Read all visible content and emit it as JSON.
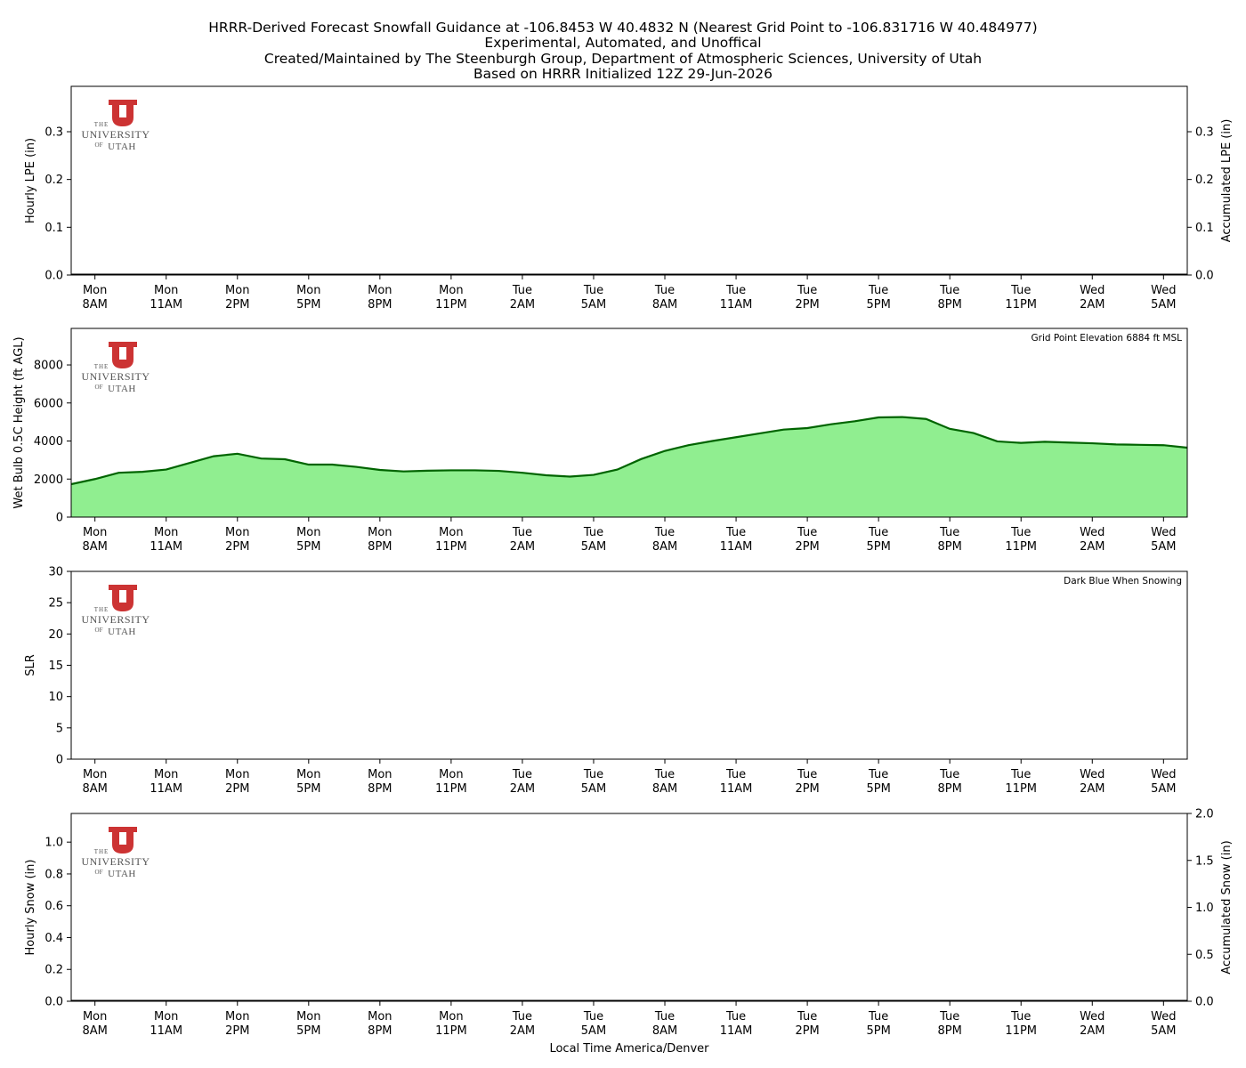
{
  "title": [
    "HRRR-Derived Forecast Snowfall Guidance at -106.8453 W 40.4832 N (Nearest Grid Point to -106.831716 W 40.484977)",
    "Experimental, Automated, and Unoffical",
    "Created/Maintained by The Steenburgh Group, Department of Atmospheric Sciences, University of Utah",
    "Based on HRRR Initialized 12Z 29-Jun-2026"
  ],
  "logo": [
    "THE",
    "UNIVERSITY",
    "OF",
    "UTAH"
  ],
  "chart_data": [
    {
      "type": "bar",
      "ylabel": "Hourly LPE (in)",
      "y2label": "Accumulated LPE (in)",
      "x": [
        null,
        "Mon\n8AM",
        null,
        null,
        "Mon\n11AM",
        null,
        null,
        "Mon\n2PM",
        null,
        null,
        "Mon\n5PM",
        null,
        null,
        "Mon\n8PM",
        null,
        null,
        "Mon\n11PM",
        null,
        null,
        "Tue\n2AM",
        null,
        null,
        "Tue\n5AM",
        null,
        null,
        "Tue\n8AM",
        null,
        null,
        "Tue\n11AM",
        null,
        null,
        "Tue\n2PM",
        null,
        null,
        "Tue\n5PM",
        null,
        null,
        "Tue\n8PM",
        null,
        null,
        "Tue\n11PM",
        null,
        null,
        "Wed\n2AM",
        null,
        null,
        "Wed\n5AM",
        null
      ],
      "ylim": [
        0,
        0.395
      ],
      "yticks": [
        {
          "value": 0,
          "label": "0.0"
        },
        0.1,
        0.2,
        0.3
      ],
      "y2lim": [
        0,
        0.395
      ],
      "y2ticks": [
        {
          "value": 0,
          "label": "0.0"
        },
        0.1,
        0.2,
        0.3
      ],
      "series": [
        {
          "color": "#00008b",
          "values": [
            0,
            0,
            0,
            0,
            0,
            0,
            0,
            0,
            0,
            0,
            0,
            0,
            0,
            0,
            0,
            0,
            0,
            0,
            0,
            0,
            0,
            0,
            0,
            0,
            0,
            0,
            0,
            0,
            0,
            0,
            0,
            0,
            0,
            0,
            0,
            0,
            0,
            0,
            0,
            0,
            0,
            0,
            0,
            0,
            0,
            0,
            0,
            0
          ]
        },
        {
          "color": "#000000",
          "axis": "y2",
          "values": [
            0,
            0,
            0,
            0,
            0,
            0,
            0,
            0,
            0,
            0,
            0,
            0,
            0,
            0,
            0,
            0,
            0,
            0,
            0,
            0,
            0,
            0,
            0,
            0,
            0,
            0,
            0,
            0,
            0,
            0,
            0,
            0,
            0,
            0,
            0,
            0,
            0,
            0,
            0,
            0,
            0,
            0,
            0,
            0,
            0,
            0,
            0,
            0
          ]
        }
      ]
    },
    {
      "type": "area",
      "ylabel": "Wet Bulb 0.5C Height (ft AGL)",
      "annotation": "Grid Point Elevation 6884 ft MSL",
      "x": [
        null,
        "Mon\n8AM",
        null,
        null,
        "Mon\n11AM",
        null,
        null,
        "Mon\n2PM",
        null,
        null,
        "Mon\n5PM",
        null,
        null,
        "Mon\n8PM",
        null,
        null,
        "Mon\n11PM",
        null,
        null,
        "Tue\n2AM",
        null,
        null,
        "Tue\n5AM",
        null,
        null,
        "Tue\n8AM",
        null,
        null,
        "Tue\n11AM",
        null,
        null,
        "Tue\n2PM",
        null,
        null,
        "Tue\n5PM",
        null,
        null,
        "Tue\n8PM",
        null,
        null,
        "Tue\n11PM",
        null,
        null,
        "Wed\n2AM",
        null,
        null,
        "Wed\n5AM",
        null
      ],
      "ylim": [
        0,
        9920
      ],
      "yticks": [
        0,
        2000,
        4000,
        6000,
        8000
      ],
      "series": [
        {
          "color": "#006400",
          "fill": "#90ee90",
          "values": [
            1730,
            2000,
            2330,
            2380,
            2500,
            2850,
            3200,
            3330,
            3080,
            3040,
            2760,
            2760,
            2640,
            2480,
            2400,
            2440,
            2460,
            2460,
            2430,
            2330,
            2200,
            2130,
            2220,
            2500,
            3050,
            3480,
            3780,
            4000,
            4200,
            4400,
            4600,
            4680,
            4880,
            5040,
            5240,
            5260,
            5160,
            4640,
            4420,
            3980,
            3900,
            3960,
            3920,
            3880,
            3820,
            3800,
            3780,
            3650
          ]
        }
      ]
    },
    {
      "type": "scatter",
      "ylabel": "SLR",
      "annotation": "Dark Blue When Snowing",
      "x": [
        null,
        "Mon\n8AM",
        null,
        null,
        "Mon\n11AM",
        null,
        null,
        "Mon\n2PM",
        null,
        null,
        "Mon\n5PM",
        null,
        null,
        "Mon\n8PM",
        null,
        null,
        "Mon\n11PM",
        null,
        null,
        "Tue\n2AM",
        null,
        null,
        "Tue\n5AM",
        null,
        null,
        "Tue\n8AM",
        null,
        null,
        "Tue\n11AM",
        null,
        null,
        "Tue\n2PM",
        null,
        null,
        "Tue\n5PM",
        null,
        null,
        "Tue\n8PM",
        null,
        null,
        "Tue\n11PM",
        null,
        null,
        "Wed\n2AM",
        null,
        null,
        "Wed\n5AM",
        null
      ],
      "ylim": [
        0,
        30
      ],
      "yticks": [
        0,
        5,
        10,
        15,
        20,
        25,
        30
      ]
    },
    {
      "type": "bar",
      "ylabel": "Hourly Snow (in)",
      "y2label": "Accumulated Snow (in)",
      "xlabel": "Local Time America/Denver",
      "x": [
        null,
        "Mon\n8AM",
        null,
        null,
        "Mon\n11AM",
        null,
        null,
        "Mon\n2PM",
        null,
        null,
        "Mon\n5PM",
        null,
        null,
        "Mon\n8PM",
        null,
        null,
        "Mon\n11PM",
        null,
        null,
        "Tue\n2AM",
        null,
        null,
        "Tue\n5AM",
        null,
        null,
        "Tue\n8AM",
        null,
        null,
        "Tue\n11AM",
        null,
        null,
        "Tue\n2PM",
        null,
        null,
        "Tue\n5PM",
        null,
        null,
        "Tue\n8PM",
        null,
        null,
        "Tue\n11PM",
        null,
        null,
        "Wed\n2AM",
        null,
        null,
        "Wed\n5AM",
        null
      ],
      "ylim": [
        0,
        1.18
      ],
      "yticks": [
        {
          "value": 0,
          "label": "0.0"
        },
        0.2,
        0.4,
        0.6,
        0.8,
        {
          "value": 1,
          "label": "1.0"
        }
      ],
      "y2lim": [
        0,
        2
      ],
      "y2ticks": [
        {
          "value": 0,
          "label": "0.0"
        },
        0.5,
        {
          "value": 1,
          "label": "1.0"
        },
        1.5,
        {
          "value": 2,
          "label": "2.0"
        }
      ],
      "series": [
        {
          "color": "#00008b",
          "values": [
            0,
            0,
            0,
            0,
            0,
            0,
            0,
            0,
            0,
            0,
            0,
            0,
            0,
            0,
            0,
            0,
            0,
            0,
            0,
            0,
            0,
            0,
            0,
            0,
            0,
            0,
            0,
            0,
            0,
            0,
            0,
            0,
            0,
            0,
            0,
            0,
            0,
            0,
            0,
            0,
            0,
            0,
            0,
            0,
            0,
            0,
            0,
            0
          ]
        },
        {
          "color": "#000000",
          "axis": "y2",
          "values": [
            0,
            0,
            0,
            0,
            0,
            0,
            0,
            0,
            0,
            0,
            0,
            0,
            0,
            0,
            0,
            0,
            0,
            0,
            0,
            0,
            0,
            0,
            0,
            0,
            0,
            0,
            0,
            0,
            0,
            0,
            0,
            0,
            0,
            0,
            0,
            0,
            0,
            0,
            0,
            0,
            0,
            0,
            0,
            0,
            0,
            0,
            0,
            0
          ]
        }
      ]
    }
  ]
}
